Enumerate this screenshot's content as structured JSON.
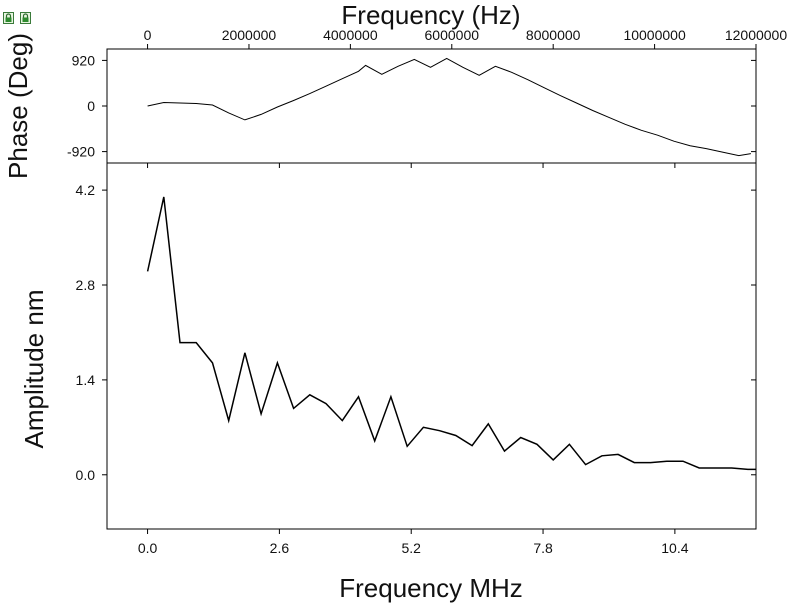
{
  "chart_data": [
    {
      "type": "line",
      "panel": "phase",
      "title": "",
      "xlabel": "Frequency (Hz)",
      "ylabel": "Phase (Deg)",
      "xlim": [
        -800000,
        12000000
      ],
      "ylim": [
        -1150,
        1150
      ],
      "x_ticks": [
        {
          "value": 0,
          "label": "0"
        },
        {
          "value": 2000000,
          "label": "2000000"
        },
        {
          "value": 4000000,
          "label": "4000000"
        },
        {
          "value": 6000000,
          "label": "6000000"
        },
        {
          "value": 8000000,
          "label": "8000000"
        },
        {
          "value": 10000000,
          "label": "10000000"
        },
        {
          "value": 12000000,
          "label": "12000000"
        }
      ],
      "y_ticks": [
        {
          "value": 920,
          "label": "920"
        },
        {
          "value": 0,
          "label": "0"
        },
        {
          "value": -920,
          "label": "-920"
        }
      ],
      "grid": false,
      "line_color": "#000000",
      "series": [
        {
          "x": [
            0,
            320000,
            640000,
            960000,
            1280000,
            1600000,
            1920000,
            2240000,
            2560000,
            2880000,
            3200000,
            3520000,
            3840000,
            4160000,
            4300000,
            4620000,
            4940000,
            5260000,
            5580000,
            5900000,
            6220000,
            6540000,
            6860000,
            7180000,
            7500000,
            7820000,
            8140000,
            8460000,
            8780000,
            9100000,
            9420000,
            9740000,
            10060000,
            10380000,
            10700000,
            11020000,
            11340000,
            11660000,
            11900000
          ],
          "y": [
            0,
            70,
            60,
            50,
            20,
            -140,
            -280,
            -170,
            -20,
            110,
            250,
            400,
            550,
            700,
            820,
            640,
            800,
            940,
            780,
            960,
            780,
            620,
            800,
            680,
            530,
            370,
            210,
            60,
            -90,
            -230,
            -370,
            -490,
            -590,
            -710,
            -800,
            -860,
            -930,
            -1000,
            -960
          ]
        }
      ]
    },
    {
      "type": "line",
      "panel": "amplitude",
      "title": "",
      "xlabel": "Frequency MHz",
      "ylabel": "Amplitude nm",
      "xlim": [
        -0.8,
        12.0
      ],
      "ylim": [
        -0.8,
        4.6
      ],
      "x_ticks": [
        {
          "value": 0.0,
          "label": "0.0"
        },
        {
          "value": 2.6,
          "label": "2.6"
        },
        {
          "value": 5.2,
          "label": "5.2"
        },
        {
          "value": 7.8,
          "label": "7.8"
        },
        {
          "value": 10.4,
          "label": "10.4"
        }
      ],
      "y_ticks": [
        {
          "value": 0.0,
          "label": "0.0"
        },
        {
          "value": 1.4,
          "label": "1.4"
        },
        {
          "value": 2.8,
          "label": "2.8"
        },
        {
          "value": 4.2,
          "label": "4.2"
        }
      ],
      "grid": false,
      "line_color": "#000000",
      "series": [
        {
          "x": [
            0.0,
            0.32,
            0.64,
            0.96,
            1.28,
            1.6,
            1.92,
            2.24,
            2.56,
            2.88,
            3.2,
            3.52,
            3.84,
            4.16,
            4.48,
            4.8,
            5.12,
            5.44,
            5.76,
            6.08,
            6.4,
            6.72,
            7.04,
            7.36,
            7.68,
            8.0,
            8.32,
            8.64,
            8.96,
            9.28,
            9.6,
            9.92,
            10.24,
            10.56,
            10.88,
            11.2,
            11.52,
            11.84,
            12.0
          ],
          "y": [
            3.0,
            4.1,
            1.95,
            1.95,
            1.65,
            0.8,
            1.8,
            0.9,
            1.65,
            0.98,
            1.18,
            1.05,
            0.8,
            1.15,
            0.5,
            1.15,
            0.42,
            0.7,
            0.65,
            0.58,
            0.43,
            0.75,
            0.35,
            0.55,
            0.45,
            0.22,
            0.45,
            0.15,
            0.28,
            0.3,
            0.18,
            0.18,
            0.2,
            0.2,
            0.1,
            0.1,
            0.1,
            0.08,
            0.08
          ]
        }
      ]
    }
  ]
}
